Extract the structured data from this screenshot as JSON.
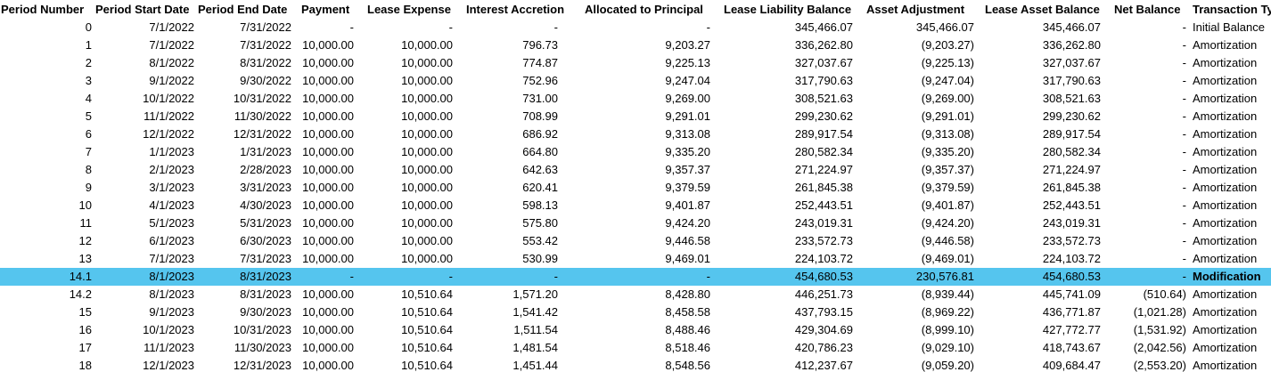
{
  "headers": {
    "period_number": "Period Number",
    "period_start": "Period Start Date",
    "period_end": "Period End Date",
    "payment": "Payment",
    "lease_expense": "Lease Expense",
    "interest_accretion": "Interest Accretion",
    "allocated_principal": "Allocated to Principal",
    "lease_liability_balance": "Lease Liability Balance",
    "asset_adjustment": "Asset Adjustment",
    "lease_asset_balance": "Lease Asset Balance",
    "net_balance": "Net Balance",
    "transaction_type": "Transaction Ty"
  },
  "highlight_color": "#55c5ee",
  "rows": [
    {
      "num": "0",
      "start": "7/1/2022",
      "end": "7/31/2022",
      "pay": "-",
      "exp": "-",
      "int": "-",
      "prin": "-",
      "liab": "345,466.07",
      "adj": "345,466.07",
      "asset": "345,466.07",
      "net": "-",
      "type": "Initial Balance"
    },
    {
      "num": "1",
      "start": "7/1/2022",
      "end": "7/31/2022",
      "pay": "10,000.00",
      "exp": "10,000.00",
      "int": "796.73",
      "prin": "9,203.27",
      "liab": "336,262.80",
      "adj": "(9,203.27)",
      "asset": "336,262.80",
      "net": "-",
      "type": "Amortization"
    },
    {
      "num": "2",
      "start": "8/1/2022",
      "end": "8/31/2022",
      "pay": "10,000.00",
      "exp": "10,000.00",
      "int": "774.87",
      "prin": "9,225.13",
      "liab": "327,037.67",
      "adj": "(9,225.13)",
      "asset": "327,037.67",
      "net": "-",
      "type": "Amortization"
    },
    {
      "num": "3",
      "start": "9/1/2022",
      "end": "9/30/2022",
      "pay": "10,000.00",
      "exp": "10,000.00",
      "int": "752.96",
      "prin": "9,247.04",
      "liab": "317,790.63",
      "adj": "(9,247.04)",
      "asset": "317,790.63",
      "net": "-",
      "type": "Amortization"
    },
    {
      "num": "4",
      "start": "10/1/2022",
      "end": "10/31/2022",
      "pay": "10,000.00",
      "exp": "10,000.00",
      "int": "731.00",
      "prin": "9,269.00",
      "liab": "308,521.63",
      "adj": "(9,269.00)",
      "asset": "308,521.63",
      "net": "-",
      "type": "Amortization"
    },
    {
      "num": "5",
      "start": "11/1/2022",
      "end": "11/30/2022",
      "pay": "10,000.00",
      "exp": "10,000.00",
      "int": "708.99",
      "prin": "9,291.01",
      "liab": "299,230.62",
      "adj": "(9,291.01)",
      "asset": "299,230.62",
      "net": "-",
      "type": "Amortization"
    },
    {
      "num": "6",
      "start": "12/1/2022",
      "end": "12/31/2022",
      "pay": "10,000.00",
      "exp": "10,000.00",
      "int": "686.92",
      "prin": "9,313.08",
      "liab": "289,917.54",
      "adj": "(9,313.08)",
      "asset": "289,917.54",
      "net": "-",
      "type": "Amortization"
    },
    {
      "num": "7",
      "start": "1/1/2023",
      "end": "1/31/2023",
      "pay": "10,000.00",
      "exp": "10,000.00",
      "int": "664.80",
      "prin": "9,335.20",
      "liab": "280,582.34",
      "adj": "(9,335.20)",
      "asset": "280,582.34",
      "net": "-",
      "type": "Amortization"
    },
    {
      "num": "8",
      "start": "2/1/2023",
      "end": "2/28/2023",
      "pay": "10,000.00",
      "exp": "10,000.00",
      "int": "642.63",
      "prin": "9,357.37",
      "liab": "271,224.97",
      "adj": "(9,357.37)",
      "asset": "271,224.97",
      "net": "-",
      "type": "Amortization"
    },
    {
      "num": "9",
      "start": "3/1/2023",
      "end": "3/31/2023",
      "pay": "10,000.00",
      "exp": "10,000.00",
      "int": "620.41",
      "prin": "9,379.59",
      "liab": "261,845.38",
      "adj": "(9,379.59)",
      "asset": "261,845.38",
      "net": "-",
      "type": "Amortization"
    },
    {
      "num": "10",
      "start": "4/1/2023",
      "end": "4/30/2023",
      "pay": "10,000.00",
      "exp": "10,000.00",
      "int": "598.13",
      "prin": "9,401.87",
      "liab": "252,443.51",
      "adj": "(9,401.87)",
      "asset": "252,443.51",
      "net": "-",
      "type": "Amortization"
    },
    {
      "num": "11",
      "start": "5/1/2023",
      "end": "5/31/2023",
      "pay": "10,000.00",
      "exp": "10,000.00",
      "int": "575.80",
      "prin": "9,424.20",
      "liab": "243,019.31",
      "adj": "(9,424.20)",
      "asset": "243,019.31",
      "net": "-",
      "type": "Amortization"
    },
    {
      "num": "12",
      "start": "6/1/2023",
      "end": "6/30/2023",
      "pay": "10,000.00",
      "exp": "10,000.00",
      "int": "553.42",
      "prin": "9,446.58",
      "liab": "233,572.73",
      "adj": "(9,446.58)",
      "asset": "233,572.73",
      "net": "-",
      "type": "Amortization"
    },
    {
      "num": "13",
      "start": "7/1/2023",
      "end": "7/31/2023",
      "pay": "10,000.00",
      "exp": "10,000.00",
      "int": "530.99",
      "prin": "9,469.01",
      "liab": "224,103.72",
      "adj": "(9,469.01)",
      "asset": "224,103.72",
      "net": "-",
      "type": "Amortization"
    },
    {
      "num": "14.1",
      "start": "8/1/2023",
      "end": "8/31/2023",
      "pay": "-",
      "exp": "-",
      "int": "-",
      "prin": "-",
      "liab": "454,680.53",
      "adj": "230,576.81",
      "asset": "454,680.53",
      "net": "-",
      "type": "Modification",
      "highlight": true
    },
    {
      "num": "14.2",
      "start": "8/1/2023",
      "end": "8/31/2023",
      "pay": "10,000.00",
      "exp": "10,510.64",
      "int": "1,571.20",
      "prin": "8,428.80",
      "liab": "446,251.73",
      "adj": "(8,939.44)",
      "asset": "445,741.09",
      "net": "(510.64)",
      "type": "Amortization"
    },
    {
      "num": "15",
      "start": "9/1/2023",
      "end": "9/30/2023",
      "pay": "10,000.00",
      "exp": "10,510.64",
      "int": "1,541.42",
      "prin": "8,458.58",
      "liab": "437,793.15",
      "adj": "(8,969.22)",
      "asset": "436,771.87",
      "net": "(1,021.28)",
      "type": "Amortization"
    },
    {
      "num": "16",
      "start": "10/1/2023",
      "end": "10/31/2023",
      "pay": "10,000.00",
      "exp": "10,510.64",
      "int": "1,511.54",
      "prin": "8,488.46",
      "liab": "429,304.69",
      "adj": "(8,999.10)",
      "asset": "427,772.77",
      "net": "(1,531.92)",
      "type": "Amortization"
    },
    {
      "num": "17",
      "start": "11/1/2023",
      "end": "11/30/2023",
      "pay": "10,000.00",
      "exp": "10,510.64",
      "int": "1,481.54",
      "prin": "8,518.46",
      "liab": "420,786.23",
      "adj": "(9,029.10)",
      "asset": "418,743.67",
      "net": "(2,042.56)",
      "type": "Amortization"
    },
    {
      "num": "18",
      "start": "12/1/2023",
      "end": "12/31/2023",
      "pay": "10,000.00",
      "exp": "10,510.64",
      "int": "1,451.44",
      "prin": "8,548.56",
      "liab": "412,237.67",
      "adj": "(9,059.20)",
      "asset": "409,684.47",
      "net": "(2,553.20)",
      "type": "Amortization"
    }
  ]
}
